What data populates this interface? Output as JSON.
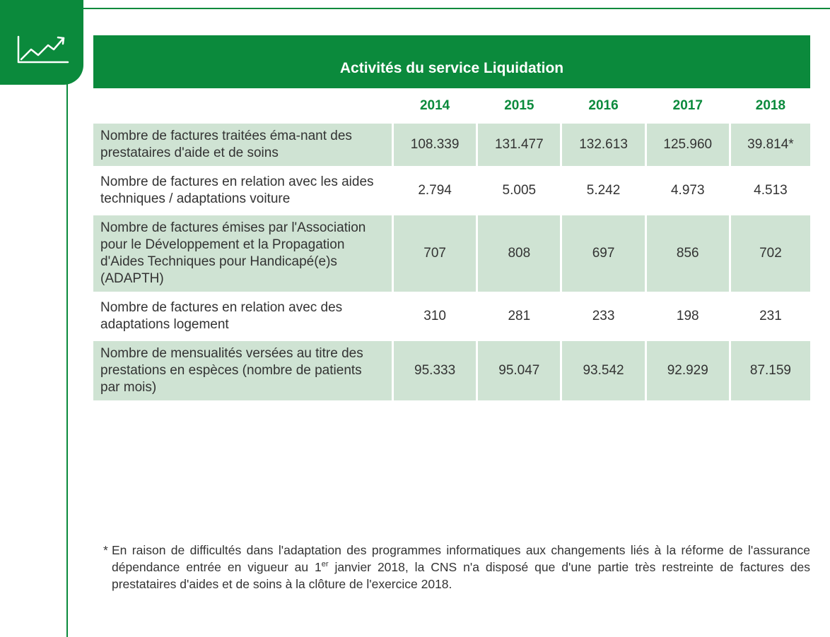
{
  "title": "Activités du service Liquidation",
  "table": {
    "columns": [
      "2014",
      "2015",
      "2016",
      "2017",
      "2018"
    ],
    "rows": [
      {
        "label": "Nombre de factures traitées éma-nant des prestataires d'aide et de soins",
        "values": [
          "108.339",
          "131.477",
          "132.613",
          "125.960",
          "39.814*"
        ]
      },
      {
        "label": "Nombre de factures en relation avec les aides techniques / adaptations voiture",
        "values": [
          "2.794",
          "5.005",
          "5.242",
          "4.973",
          "4.513"
        ]
      },
      {
        "label": "Nombre de factures émises par l'Association pour le Développement et la Propagation d'Aides Techniques pour Handicapé(e)s (ADAPTH)",
        "values": [
          "707",
          "808",
          "697",
          "856",
          "702"
        ]
      },
      {
        "label": "Nombre de factures en relation avec des adaptations logement",
        "values": [
          "310",
          "281",
          "233",
          "198",
          "231"
        ]
      },
      {
        "label": "Nombre de mensualités versées au titre des prestations en espèces (nombre de patients par mois)",
        "values": [
          "95.333",
          "95.047",
          "93.542",
          "92.929",
          "87.159"
        ]
      }
    ]
  },
  "footnote": {
    "marker": "*",
    "text_before": "En raison de difficultés dans l'adaptation des programmes informatiques aux changements liés à la réforme de l'assurance dépendance entrée en vigueur au 1",
    "superscript": "er",
    "text_after": " janvier 2018, la CNS n'a disposé que d'une partie très restreinte de factures des prestataires d'aides et de soins à la clôture de l'exercice 2018."
  }
}
